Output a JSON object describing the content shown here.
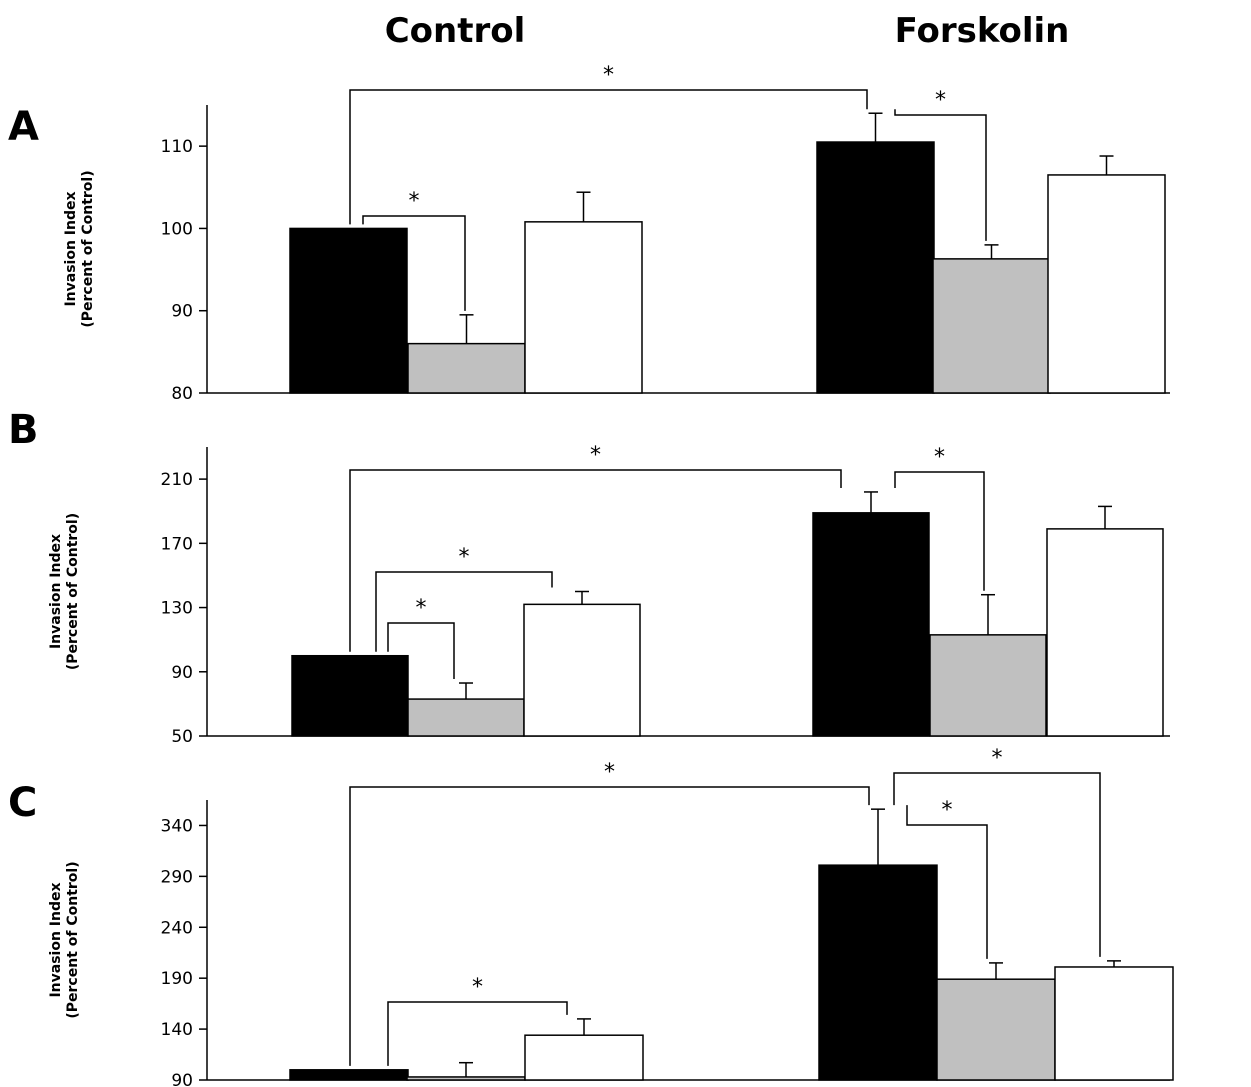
{
  "figure": {
    "group_labels": [
      "Control",
      "Forskolin"
    ]
  },
  "colors": {
    "bar_fills": [
      "#000000",
      "#c0c0c0",
      "#ffffff"
    ],
    "stroke": "#000000"
  },
  "chart_data": [
    {
      "type": "bar",
      "panel_label": "A",
      "title": "",
      "xlabel": "",
      "ylabel": "Invasion Index (Percent of Control)",
      "ylabel_lines": [
        "Invasion Index",
        "(Percent of Control)"
      ],
      "categories": [
        "Control",
        "Forskolin"
      ],
      "ylim": [
        80,
        115
      ],
      "yticks": [
        80,
        90,
        100,
        110
      ],
      "series": [
        {
          "values": [
            100,
            110.5
          ],
          "errors": [
            0,
            3.5
          ],
          "fill": "#000000"
        },
        {
          "values": [
            86,
            96.3
          ],
          "errors": [
            3.5,
            1.7
          ],
          "fill": "#c0c0c0"
        },
        {
          "values": [
            100.8,
            106.5
          ],
          "errors": [
            3.6,
            2.3
          ],
          "fill": "#ffffff"
        }
      ],
      "significance": [
        {
          "label": "*",
          "from": [
            0,
            0
          ],
          "to": [
            1,
            0
          ]
        },
        {
          "label": "*",
          "from": [
            0,
            0
          ],
          "to": [
            0,
            1
          ]
        },
        {
          "label": "*",
          "from": [
            1,
            0
          ],
          "to": [
            1,
            1
          ]
        }
      ]
    },
    {
      "type": "bar",
      "panel_label": "B",
      "title": "",
      "xlabel": "",
      "ylabel": "Invasion Index (Percent of Control)",
      "ylabel_lines": [
        "Invasion Index",
        "(Percent of Control)"
      ],
      "categories": [
        "Control",
        "Forskolin"
      ],
      "ylim": [
        50,
        230
      ],
      "yticks": [
        50,
        90,
        130,
        170,
        210
      ],
      "series": [
        {
          "values": [
            100,
            189
          ],
          "errors": [
            0,
            13
          ],
          "fill": "#000000"
        },
        {
          "values": [
            73,
            113
          ],
          "errors": [
            10,
            25
          ],
          "fill": "#c0c0c0"
        },
        {
          "values": [
            132,
            179
          ],
          "errors": [
            8,
            14
          ],
          "fill": "#ffffff"
        }
      ],
      "significance": [
        {
          "label": "*",
          "from": [
            0,
            0
          ],
          "to": [
            1,
            0
          ]
        },
        {
          "label": "*",
          "from": [
            0,
            0
          ],
          "to": [
            0,
            1
          ]
        },
        {
          "label": "*",
          "from": [
            0,
            0
          ],
          "to": [
            0,
            2
          ]
        },
        {
          "label": "*",
          "from": [
            1,
            0
          ],
          "to": [
            1,
            1
          ]
        }
      ]
    },
    {
      "type": "bar",
      "panel_label": "C",
      "title": "",
      "xlabel": "",
      "ylabel": "Invasion Index (Percent of Control)",
      "ylabel_lines": [
        "Invasion Index",
        "(Percent of Control)"
      ],
      "categories": [
        "Control",
        "Forskolin"
      ],
      "ylim": [
        90,
        365
      ],
      "yticks": [
        90,
        140,
        190,
        240,
        290,
        340
      ],
      "series": [
        {
          "values": [
            100,
            301
          ],
          "errors": [
            0,
            55
          ],
          "fill": "#000000"
        },
        {
          "values": [
            93,
            189
          ],
          "errors": [
            14,
            16
          ],
          "fill": "#c0c0c0"
        },
        {
          "values": [
            134,
            201
          ],
          "errors": [
            16,
            6
          ],
          "fill": "#ffffff"
        }
      ],
      "significance": [
        {
          "label": "*",
          "from": [
            0,
            0
          ],
          "to": [
            1,
            0
          ]
        },
        {
          "label": "*",
          "from": [
            0,
            0
          ],
          "to": [
            0,
            2
          ]
        },
        {
          "label": "*",
          "from": [
            1,
            0
          ],
          "to": [
            1,
            1
          ]
        },
        {
          "label": "*",
          "from": [
            1,
            0
          ],
          "to": [
            1,
            2
          ]
        }
      ]
    }
  ]
}
